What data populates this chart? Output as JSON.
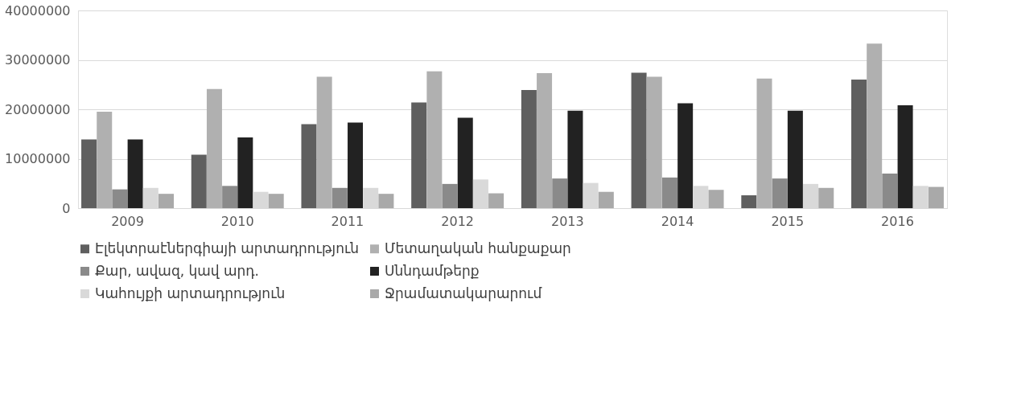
{
  "chart_data": {
    "type": "bar",
    "categories": [
      "2009",
      "2010",
      "2011",
      "2012",
      "2013",
      "2014",
      "2015",
      "2016"
    ],
    "series": [
      {
        "name": "Էլեկտրաէներգիայի արտադրություն",
        "color": "#5f5f5f",
        "values": [
          13900000,
          10800000,
          17000000,
          21400000,
          23900000,
          27400000,
          2600000,
          26000000
        ]
      },
      {
        "name": "Մետաղական հանքաքար",
        "color": "#b0b0b0",
        "values": [
          19500000,
          24100000,
          26600000,
          27700000,
          27300000,
          26600000,
          26200000,
          33300000
        ]
      },
      {
        "name": "Քար, ավազ, կավ արդ.",
        "color": "#8a8a8a",
        "values": [
          3800000,
          4500000,
          4100000,
          4900000,
          6000000,
          6200000,
          6000000,
          7000000
        ]
      },
      {
        "name": "Սննդամթերք",
        "color": "#222222",
        "values": [
          13900000,
          14300000,
          17300000,
          18300000,
          19700000,
          21200000,
          19700000,
          20800000
        ]
      },
      {
        "name": "Կահույքի արտադրություն",
        "color": "#d9d9d9",
        "values": [
          4100000,
          3300000,
          4100000,
          5800000,
          5100000,
          4500000,
          4900000,
          4500000
        ]
      },
      {
        "name": "Ջրամատակարարում",
        "color": "#a9a9a9",
        "values": [
          2900000,
          2900000,
          2900000,
          3000000,
          3300000,
          3700000,
          4100000,
          4300000
        ]
      }
    ],
    "ylim": [
      0,
      40000000
    ],
    "yticks": [
      0,
      10000000,
      20000000,
      30000000,
      40000000
    ],
    "grid": "y",
    "legend": "bottom"
  }
}
